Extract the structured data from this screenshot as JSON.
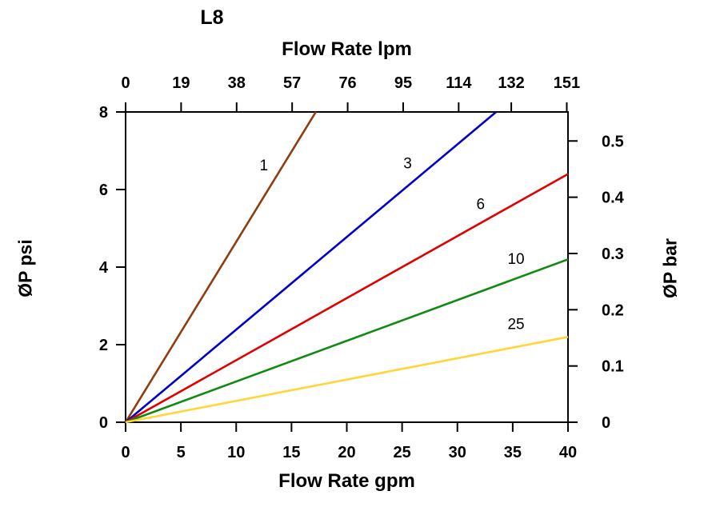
{
  "title": "L8",
  "chart_data": {
    "type": "line",
    "title": "L8",
    "grid": false,
    "legend": "inline-labels",
    "x_bottom": {
      "label": "Flow Rate gpm",
      "ticks": [
        0,
        5,
        10,
        15,
        20,
        25,
        30,
        35,
        40
      ],
      "range": [
        0,
        40
      ]
    },
    "x_top": {
      "label": "Flow Rate lpm",
      "ticks": [
        0,
        19,
        38,
        57,
        76,
        95,
        114,
        132,
        151
      ],
      "range": [
        0,
        151.4
      ]
    },
    "y_left": {
      "label": "ØP psi",
      "ticks": [
        0,
        2,
        4,
        6,
        8
      ],
      "range": [
        0,
        8
      ]
    },
    "y_right": {
      "label": "ØP bar",
      "ticks": [
        0,
        0.1,
        0.2,
        0.3,
        0.4,
        0.5
      ],
      "range": [
        0,
        0.5516
      ]
    },
    "series": [
      {
        "name": "1",
        "color": "#8f3d10",
        "points": [
          [
            0,
            0
          ],
          [
            17.2,
            8
          ]
        ],
        "label_pos": [
          12.5,
          6.5
        ]
      },
      {
        "name": "3",
        "color": "#0000cc",
        "points": [
          [
            0,
            0
          ],
          [
            33.5,
            8
          ]
        ],
        "label_pos": [
          25.5,
          6.55
        ]
      },
      {
        "name": "6",
        "color": "#e00000",
        "points": [
          [
            0,
            0
          ],
          [
            40,
            6.4
          ]
        ],
        "label_pos": [
          32.1,
          5.5
        ]
      },
      {
        "name": "10",
        "color": "#108a10",
        "points": [
          [
            0,
            0
          ],
          [
            40,
            4.2
          ]
        ],
        "label_pos": [
          35.3,
          4.08
        ]
      },
      {
        "name": "25",
        "color": "#ffd633",
        "points": [
          [
            0,
            0
          ],
          [
            40,
            2.2
          ]
        ],
        "label_pos": [
          35.3,
          2.4
        ]
      }
    ]
  }
}
